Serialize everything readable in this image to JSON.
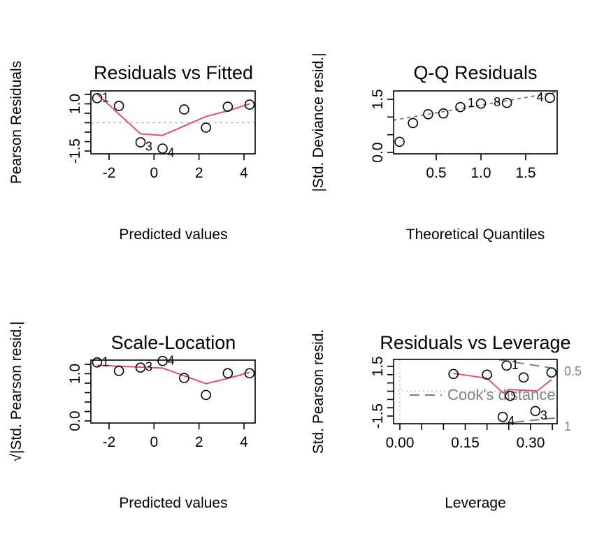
{
  "chart_data": [
    {
      "type": "scatter",
      "title": "Residuals vs Fitted",
      "xlabel": "Predicted values",
      "ylabel": "Pearson Residuals",
      "xlim": [
        -2.8,
        4.5
      ],
      "ylim": [
        -1.5,
        1.5
      ],
      "xticks": [
        -2,
        0,
        2,
        4
      ],
      "xtick_labels": [
        "-2",
        "0",
        "2",
        "4"
      ],
      "yticks": [
        -1.5,
        -1,
        -0.5,
        0,
        0.5,
        1,
        1.5
      ],
      "ytick_labels": {
        "-1.5": "-1.5",
        "1": "1.0"
      },
      "points": [
        {
          "x": -2.53,
          "y": 1.3,
          "label": "1"
        },
        {
          "x": -1.56,
          "y": 0.89
        },
        {
          "x": -0.6,
          "y": -1.04,
          "label": "3"
        },
        {
          "x": 0.38,
          "y": -1.37,
          "label": "4"
        },
        {
          "x": 1.34,
          "y": 0.7
        },
        {
          "x": 2.31,
          "y": -0.26
        },
        {
          "x": 3.28,
          "y": 0.85
        },
        {
          "x": 4.25,
          "y": 0.96
        }
      ],
      "smooth": [
        [
          -2.53,
          1.52
        ],
        [
          -0.6,
          -0.59
        ],
        [
          0.38,
          -0.67
        ],
        [
          2.31,
          0.33
        ],
        [
          3.28,
          0.63
        ],
        [
          4.25,
          1.0
        ]
      ],
      "hline": 0,
      "colors": {
        "smooth": "#DF536B",
        "reference": "#BEBEBE"
      }
    },
    {
      "type": "scatter",
      "title": "Q-Q Residuals",
      "xlabel": "Theoretical Quantiles",
      "ylabel": "|Std. Deviance resid.|",
      "xlim": [
        0.02,
        1.84
      ],
      "ylim": [
        0,
        1.5
      ],
      "xticks": [
        0.5,
        1.0,
        1.5
      ],
      "xtick_labels": [
        "0.5",
        "1.0",
        "1.5"
      ],
      "yticks": [
        0,
        0.5,
        1.0,
        1.5
      ],
      "ytick_labels": {
        "0": "0.0",
        "1.5": "1.5"
      },
      "points": [
        {
          "x": 0.09,
          "y": 0.3
        },
        {
          "x": 0.24,
          "y": 0.83
        },
        {
          "x": 0.41,
          "y": 1.08
        },
        {
          "x": 0.58,
          "y": 1.1
        },
        {
          "x": 0.77,
          "y": 1.28
        },
        {
          "x": 1.0,
          "y": 1.38,
          "label": "1"
        },
        {
          "x": 1.29,
          "y": 1.4,
          "label": "8"
        },
        {
          "x": 1.77,
          "y": 1.54,
          "label": "4"
        }
      ],
      "refline": [
        [
          0.02,
          0.91
        ],
        [
          1.84,
          1.7
        ]
      ],
      "colors": {
        "reference": "#808080"
      }
    },
    {
      "type": "scatter",
      "title": "Scale-Location",
      "xlabel": "Predicted values",
      "ylabel": "√|Std. Pearson resid.|",
      "xlim": [
        -2.8,
        4.5
      ],
      "ylim": [
        0,
        1.2
      ],
      "xticks": [
        -2,
        0,
        2,
        4
      ],
      "xtick_labels": [
        "-2",
        "0",
        "2",
        "4"
      ],
      "yticks": [
        0,
        0.2,
        0.4,
        0.6,
        0.8,
        1.0,
        1.2
      ],
      "ytick_labels": {
        "0": "0.0",
        "1": "1.0"
      },
      "points": [
        {
          "x": -2.53,
          "y": 1.24,
          "label": "1"
        },
        {
          "x": -1.56,
          "y": 1.06
        },
        {
          "x": -0.6,
          "y": 1.13,
          "label": "3"
        },
        {
          "x": 0.38,
          "y": 1.27,
          "label": "4"
        },
        {
          "x": 1.34,
          "y": 0.91
        },
        {
          "x": 2.31,
          "y": 0.55
        },
        {
          "x": 3.28,
          "y": 1.01
        },
        {
          "x": 4.25,
          "y": 1.01
        }
      ],
      "smooth": [
        [
          -2.53,
          1.18
        ],
        [
          0.38,
          1.12
        ],
        [
          2.31,
          0.79
        ],
        [
          3.28,
          0.9
        ],
        [
          4.25,
          1.03
        ]
      ],
      "colors": {
        "smooth": "#DF536B"
      }
    },
    {
      "type": "scatter",
      "title": "Residuals vs Leverage",
      "xlabel": "Leverage",
      "ylabel": "Std. Pearson resid.",
      "xlim": [
        -0.015,
        0.362
      ],
      "ylim": [
        -1.5,
        1.5
      ],
      "xticks": [
        0,
        0.05,
        0.1,
        0.15,
        0.2,
        0.25,
        0.3,
        0.35
      ],
      "xtick_labels": {
        "0": "0.00",
        "0.15": "0.15",
        "0.3": "0.30"
      },
      "yticks": [
        -1.5,
        -1,
        -0.5,
        0,
        0.5,
        1,
        1.5
      ],
      "ytick_labels": {
        "-1.5": "-1.5",
        "1.5": "1.5"
      },
      "points": [
        {
          "x": 0.123,
          "y": 1.04
        },
        {
          "x": 0.2,
          "y": 1.0
        },
        {
          "x": 0.245,
          "y": 1.55,
          "label": "1"
        },
        {
          "x": 0.284,
          "y": 0.83
        },
        {
          "x": 0.253,
          "y": -0.28
        },
        {
          "x": 0.348,
          "y": 1.13
        },
        {
          "x": 0.236,
          "y": -1.55,
          "label": "4"
        },
        {
          "x": 0.311,
          "y": -1.2,
          "label": "3"
        }
      ],
      "smooth": [
        [
          0.123,
          1.08
        ],
        [
          0.2,
          0.78
        ],
        [
          0.237,
          -0.1
        ],
        [
          0.253,
          0.1
        ],
        [
          0.315,
          0.02
        ],
        [
          0.348,
          0.7
        ]
      ],
      "cooks_contours": [
        {
          "level": "0.5",
          "line": [
            [
              0.228,
              1.9
            ],
            [
              0.362,
              1.35
            ]
          ]
        },
        {
          "level": "1",
          "line": [
            [
              0.228,
              -1.97
            ],
            [
              0.362,
              -1.6
            ]
          ]
        }
      ],
      "legend": {
        "text": "Cook's distance",
        "placement": "bottom-left"
      },
      "colors": {
        "smooth": "#DF536B",
        "cooks": "#808080",
        "reference": "#BEBEBE"
      }
    }
  ]
}
